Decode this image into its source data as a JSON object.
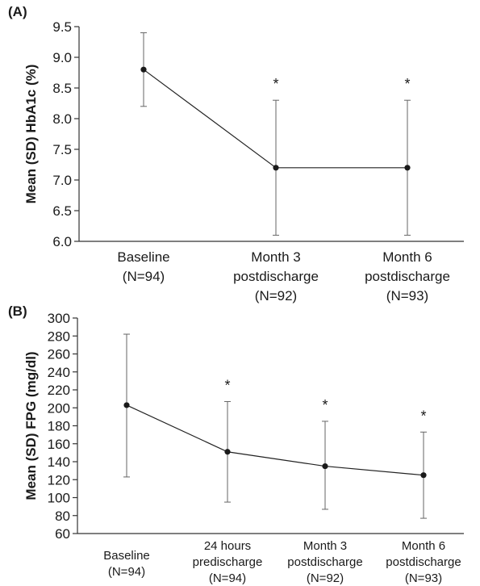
{
  "chart_data": [
    {
      "type": "line",
      "panel_label": "(A)",
      "title": "",
      "ylabel": "Mean (SD) HbA1c (%)",
      "xlabel": "",
      "ylim": [
        6.0,
        9.5
      ],
      "yticks": [
        "6.0",
        "6.5",
        "7.0",
        "7.5",
        "8.0",
        "8.5",
        "9.0",
        "9.5"
      ],
      "ytick_values": [
        6.0,
        6.5,
        7.0,
        7.5,
        8.0,
        8.5,
        9.0,
        9.5
      ],
      "categories": [
        [
          "Baseline",
          "(N=94)"
        ],
        [
          "Month 3",
          "postdischarge",
          "(N=92)"
        ],
        [
          "Month 6",
          "postdischarge",
          "(N=93)"
        ]
      ],
      "values": [
        8.8,
        7.2,
        7.2
      ],
      "err_upper": [
        9.4,
        8.3,
        8.3
      ],
      "err_lower": [
        8.2,
        6.1,
        6.1
      ],
      "significance": [
        "",
        "*",
        "*"
      ]
    },
    {
      "type": "line",
      "panel_label": "(B)",
      "title": "",
      "ylabel": "Mean (SD) FPG (mg/dl)",
      "xlabel": "",
      "ylim": [
        60,
        300
      ],
      "yticks": [
        "60",
        "80",
        "100",
        "120",
        "140",
        "160",
        "180",
        "200",
        "220",
        "240",
        "260",
        "280",
        "300"
      ],
      "ytick_values": [
        60,
        80,
        100,
        120,
        140,
        160,
        180,
        200,
        220,
        240,
        260,
        280,
        300
      ],
      "categories": [
        [
          "Baseline",
          "(N=94)"
        ],
        [
          "24 hours",
          "predischarge",
          "(N=94)"
        ],
        [
          "Month 3",
          "postdischarge",
          "(N=92)"
        ],
        [
          "Month 6",
          "postdischarge",
          "(N=93)"
        ]
      ],
      "values": [
        203,
        151,
        135,
        125
      ],
      "err_upper": [
        282,
        207,
        185,
        173
      ],
      "err_lower": [
        123,
        95,
        87,
        77
      ],
      "significance": [
        "",
        "*",
        "*",
        "*"
      ]
    }
  ]
}
